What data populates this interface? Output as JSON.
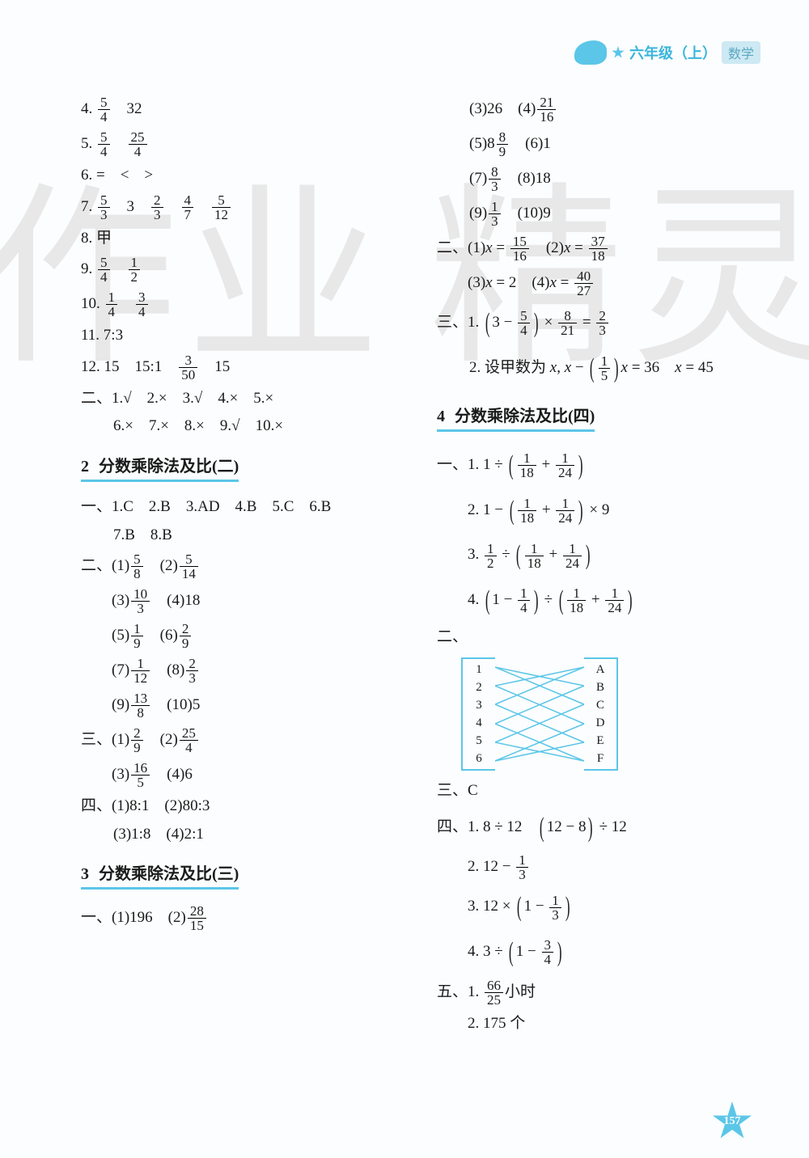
{
  "header": {
    "grade": "六年级（上）",
    "subject": "数学"
  },
  "page_number": "157",
  "watermark": [
    "作",
    "业",
    "精",
    "灵"
  ],
  "left_col": {
    "top_items": [
      {
        "n": "4.",
        "parts": [
          "5/4",
          "32"
        ]
      },
      {
        "n": "5.",
        "parts": [
          "5/4",
          "25/4"
        ]
      },
      {
        "n": "6.",
        "parts": [
          "=",
          "<",
          ">"
        ]
      },
      {
        "n": "7.",
        "parts": [
          "5/3",
          "3",
          "2/3",
          "4/7",
          "5/12"
        ]
      },
      {
        "n": "8.",
        "parts": [
          "甲"
        ]
      },
      {
        "n": "9.",
        "parts": [
          "5/4",
          "1/2"
        ]
      },
      {
        "n": "10.",
        "parts": [
          "1/4",
          "3/4"
        ]
      },
      {
        "n": "11.",
        "parts": [
          "7:3"
        ]
      },
      {
        "n": "12.",
        "parts": [
          "15",
          "15:1",
          "3/50",
          "15"
        ]
      }
    ],
    "group2_prefix": "二、",
    "group2": "1.√　2.×　3.√　4.×　5.×",
    "group2b": "6.×　7.×　8.×　9.√　10.×",
    "section2_num": "2",
    "section2_title": "分数乘除法及比(二)",
    "sec2_g1_prefix": "一、",
    "sec2_g1": "1.C　2.B　3.AD　4.B　5.C　6.B",
    "sec2_g1b": "7.B　8.B",
    "sec2_g2_prefix": "二、",
    "sec2_g2_rows": [
      [
        {
          "l": "(1)",
          "v": "5/8"
        },
        {
          "l": "(2)",
          "v": "5/14"
        }
      ],
      [
        {
          "l": "(3)",
          "v": "10/3"
        },
        {
          "l": "(4)",
          "v": "18"
        }
      ],
      [
        {
          "l": "(5)",
          "v": "1/9"
        },
        {
          "l": "(6)",
          "v": "2/9"
        }
      ],
      [
        {
          "l": "(7)",
          "v": "1/12"
        },
        {
          "l": "(8)",
          "v": "2/3"
        }
      ],
      [
        {
          "l": "(9)",
          "v": "13/8"
        },
        {
          "l": "(10)",
          "v": "5"
        }
      ]
    ],
    "sec2_g3_prefix": "三、",
    "sec2_g3_rows": [
      [
        {
          "l": "(1)",
          "v": "2/9"
        },
        {
          "l": "(2)",
          "v": "25/4"
        }
      ],
      [
        {
          "l": "(3)",
          "v": "16/5"
        },
        {
          "l": "(4)",
          "v": "6"
        }
      ]
    ],
    "sec2_g4_prefix": "四、",
    "sec2_g4a": "(1)8:1　(2)80:3",
    "sec2_g4b": "(3)1:8　(4)2:1",
    "section3_num": "3",
    "section3_title": "分数乘除法及比(三)",
    "sec3_g1_prefix": "一、",
    "sec3_g1": [
      {
        "l": "(1)",
        "v": "196"
      },
      {
        "l": "(2)",
        "v": "28/15"
      }
    ]
  },
  "right_col": {
    "top_rows": [
      [
        {
          "l": "(3)",
          "v": "26"
        },
        {
          "l": "(4)",
          "v": "21/16"
        }
      ],
      [
        {
          "l": "(5)",
          "v": "8 8/9",
          "mixed": true
        },
        {
          "l": "(6)",
          "v": "1"
        }
      ],
      [
        {
          "l": "(7)",
          "v": "8/3"
        },
        {
          "l": "(8)",
          "v": "18"
        }
      ],
      [
        {
          "l": "(9)",
          "v": "1/3"
        },
        {
          "l": "(10)",
          "v": "9"
        }
      ]
    ],
    "g2_prefix": "二、",
    "g2_rows": [
      [
        {
          "l": "(1)",
          "v": "x = 15/16",
          "eq": true
        },
        {
          "l": "(2)",
          "v": "x = 37/18",
          "eq": true
        }
      ],
      [
        {
          "l": "(3)",
          "v": "x = 2"
        },
        {
          "l": "(4)",
          "v": "x = 40/27",
          "eq": true
        }
      ]
    ],
    "g3_prefix": "三、",
    "g3_line1_label": "1.",
    "g3_line1": "(3 − 5/4) × 8/21 = 2/3",
    "g3_line2_label": "2.",
    "g3_line2": "设甲数为 x, x − (1/5)x = 36　x = 45",
    "section4_num": "4",
    "section4_title": "分数乘除法及比(四)",
    "sec4_g1_prefix": "一、",
    "sec4_g1": [
      {
        "l": "1.",
        "v": "1 ÷ (1/18 + 1/24)"
      },
      {
        "l": "2.",
        "v": "1 − (1/18 + 1/24) × 9"
      },
      {
        "l": "3.",
        "v": "1/2 ÷ (1/18 + 1/24)"
      },
      {
        "l": "4.",
        "v": "(1 − 1/4) ÷ (1/18 + 1/24)"
      }
    ],
    "sec4_g2_prefix": "二、",
    "match_left": [
      "1",
      "2",
      "3",
      "4",
      "5",
      "6"
    ],
    "match_right": [
      "A",
      "B",
      "C",
      "D",
      "E",
      "F"
    ],
    "match_color": "#5bc6e8",
    "sec4_g3_prefix": "三、",
    "sec4_g3": "C",
    "sec4_g4_prefix": "四、",
    "sec4_g4": [
      {
        "l": "1.",
        "v": "8 ÷ 12　(12 − 8) ÷ 12"
      },
      {
        "l": "2.",
        "v": "12 − 1/3"
      },
      {
        "l": "3.",
        "v": "12 × (1 − 1/3)"
      },
      {
        "l": "4.",
        "v": "3 ÷ (1 − 3/4)"
      }
    ],
    "sec4_g5_prefix": "五、",
    "sec4_g5": [
      {
        "l": "1.",
        "v": "66/25 小时",
        "isfrac_unit": true
      },
      {
        "l": "2.",
        "v": "175 个"
      }
    ]
  },
  "colors": {
    "accent": "#5bc6e8",
    "text": "#1a1a1a",
    "bg": "#fbfdfe",
    "watermark": "#e8e8e8"
  }
}
